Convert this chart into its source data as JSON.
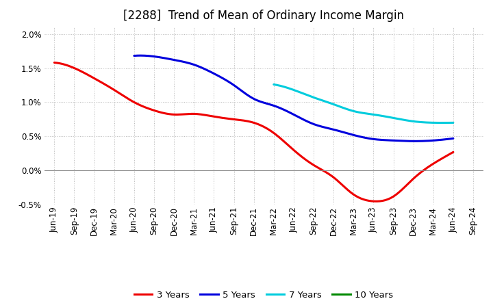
{
  "title": "[2288]  Trend of Mean of Ordinary Income Margin",
  "background_color": "#ffffff",
  "plot_background_color": "#ffffff",
  "ylim": [
    -0.005,
    0.021
  ],
  "yticks": [
    -0.005,
    0.0,
    0.005,
    0.01,
    0.015,
    0.02
  ],
  "grid_color": "#bbbbbb",
  "x_labels": [
    "Jun-19",
    "Sep-19",
    "Dec-19",
    "Mar-20",
    "Jun-20",
    "Sep-20",
    "Dec-20",
    "Mar-21",
    "Jun-21",
    "Sep-21",
    "Dec-21",
    "Mar-22",
    "Jun-22",
    "Sep-22",
    "Dec-22",
    "Mar-23",
    "Jun-23",
    "Sep-23",
    "Dec-23",
    "Mar-24",
    "Jun-24",
    "Sep-24"
  ],
  "series": {
    "3 Years": {
      "color": "#ee0000",
      "data_y": [
        0.0158,
        0.015,
        0.0135,
        0.0118,
        0.01,
        0.0088,
        0.0082,
        0.0083,
        0.0079,
        0.0075,
        0.007,
        0.0055,
        0.003,
        0.0008,
        -0.001,
        -0.0035,
        -0.0045,
        -0.0038,
        -0.0012,
        0.001,
        0.0027,
        null
      ]
    },
    "5 Years": {
      "color": "#0000dd",
      "data_y": [
        null,
        null,
        null,
        null,
        0.0168,
        0.0167,
        0.0162,
        0.0155,
        0.0142,
        0.0125,
        0.0105,
        0.0095,
        0.0082,
        0.0068,
        0.006,
        0.0052,
        0.0046,
        0.0044,
        0.0043,
        0.0044,
        0.0047,
        null
      ]
    },
    "7 Years": {
      "color": "#00ccdd",
      "data_y": [
        null,
        null,
        null,
        null,
        null,
        null,
        null,
        null,
        null,
        null,
        null,
        0.0126,
        0.0118,
        0.0107,
        0.0097,
        0.0087,
        0.0082,
        0.0077,
        0.0072,
        0.007,
        0.007,
        null
      ]
    },
    "10 Years": {
      "color": "#008800",
      "data_y": [
        null,
        null,
        null,
        null,
        null,
        null,
        null,
        null,
        null,
        null,
        null,
        null,
        null,
        null,
        null,
        null,
        null,
        null,
        null,
        null,
        null,
        null
      ]
    }
  },
  "legend_labels": [
    "3 Years",
    "5 Years",
    "7 Years",
    "10 Years"
  ],
  "legend_colors": [
    "#ee0000",
    "#0000dd",
    "#00ccdd",
    "#008800"
  ],
  "linewidth": 2.2,
  "title_fontsize": 12,
  "tick_fontsize": 8.5,
  "legend_fontsize": 9.5
}
